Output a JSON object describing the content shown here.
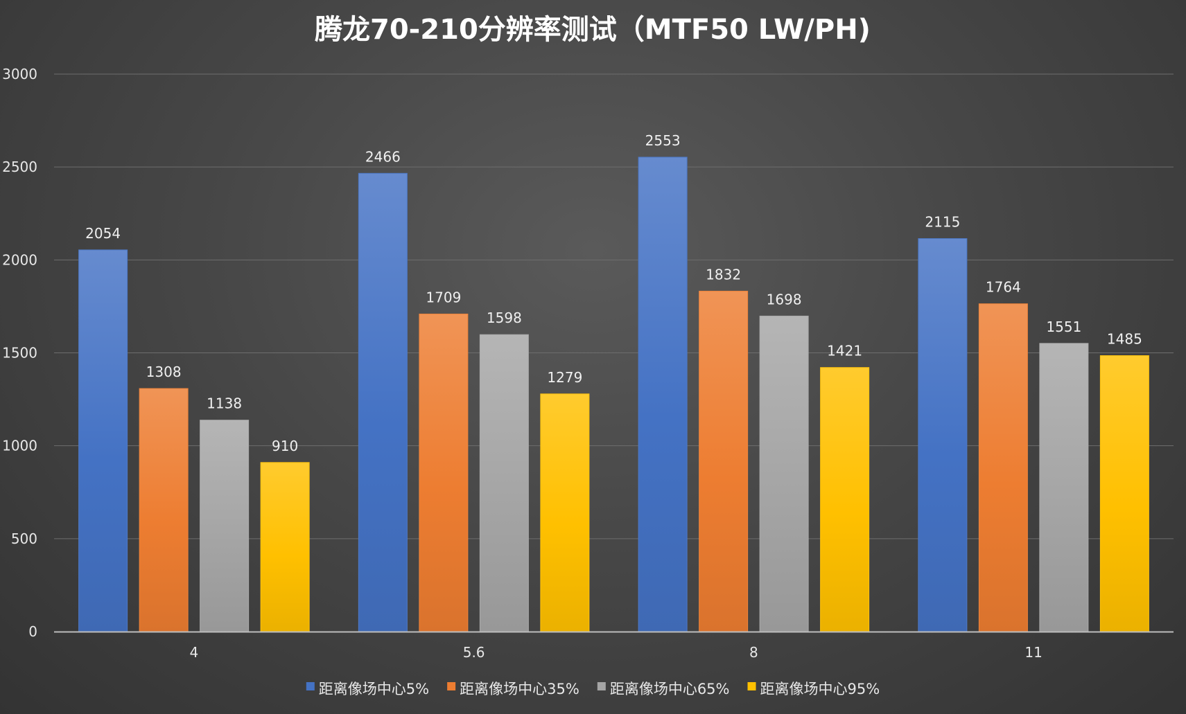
{
  "chart_data": {
    "type": "bar",
    "title": "腾龙70-210分辨率测试（MTF50 LW/PH)",
    "categories": [
      "4",
      "5.6",
      "8",
      "11"
    ],
    "series": [
      {
        "name": "距离像场中心5%",
        "color": "#4472c4",
        "values": [
          2054,
          2466,
          2553,
          2115
        ]
      },
      {
        "name": "距离像场中心35%",
        "color": "#ed7d31",
        "values": [
          1308,
          1709,
          1832,
          1764
        ]
      },
      {
        "name": "距离像场中心65%",
        "color": "#a5a5a5",
        "values": [
          1138,
          1598,
          1698,
          1551
        ]
      },
      {
        "name": "距离像场中心95%",
        "color": "#ffc000",
        "values": [
          910,
          1279,
          1421,
          1485
        ]
      }
    ],
    "ylim": [
      0,
      3000
    ],
    "yticks": [
      0,
      500,
      1000,
      1500,
      2000,
      2500,
      3000
    ],
    "xlabel": "",
    "ylabel": "",
    "grid": true,
    "legend": "bottom",
    "data_labels": true
  }
}
